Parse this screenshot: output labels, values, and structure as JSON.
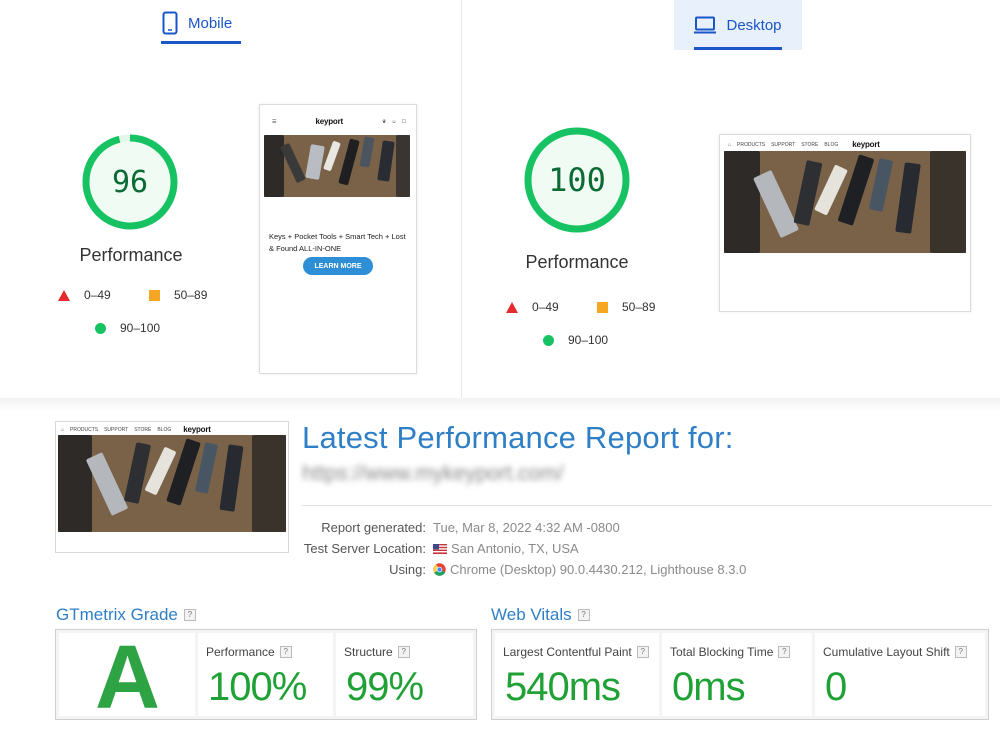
{
  "tabs": {
    "mobile": "Mobile",
    "desktop": "Desktop"
  },
  "mobile": {
    "score": "96",
    "score_value": 96,
    "label": "Performance",
    "legend": {
      "red": "0–49",
      "orange": "50–89",
      "green": "90–100"
    },
    "preview": {
      "logo": "keyport",
      "caption": "Keys + Pocket Tools + Smart Tech + Lost & Found ALL-IN-ONE",
      "button": "LEARN MORE"
    }
  },
  "desktop": {
    "score": "100",
    "score_value": 100,
    "label": "Performance",
    "legend": {
      "red": "0–49",
      "orange": "50–89",
      "green": "90–100"
    },
    "preview": {
      "logo": "keyport",
      "nav": [
        "PRODUCTS",
        "SUPPORT",
        "STORE",
        "BLOG"
      ]
    }
  },
  "report": {
    "title": "Latest Performance Report for:",
    "url": "https://www.mykeyport.com/",
    "thumb_logo": "keyport",
    "thumb_nav": [
      "PRODUCTS",
      "SUPPORT",
      "STORE",
      "BLOG"
    ],
    "meta": [
      {
        "key": "Report generated:",
        "value": "Tue, Mar 8, 2022 4:32 AM -0800",
        "icon": ""
      },
      {
        "key": "Test Server Location:",
        "value": "San Antonio, TX, USA",
        "icon": "us-flag-icon"
      },
      {
        "key": "Using:",
        "value": "Chrome (Desktop) 90.0.4430.212, Lighthouse 8.3.0",
        "icon": "chrome-icon"
      }
    ]
  },
  "gtmetrix": {
    "heading": "GTmetrix Grade",
    "grade": "A",
    "performance_label": "Performance",
    "performance_value": "100%",
    "structure_label": "Structure",
    "structure_value": "99%"
  },
  "vitals": {
    "heading": "Web Vitals",
    "lcp_label": "Largest Contentful Paint",
    "lcp_value": "540ms",
    "tbt_label": "Total Blocking Time",
    "tbt_value": "0ms",
    "cls_label": "Cumulative Layout Shift",
    "cls_value": "0"
  },
  "colors": {
    "accent_blue": "#1a56c8",
    "title_blue": "#2f7fc7",
    "good_green": "#17c263",
    "grade_green": "#2ea344",
    "poor_red": "#e42a2a",
    "average_orange": "#f5a623"
  }
}
